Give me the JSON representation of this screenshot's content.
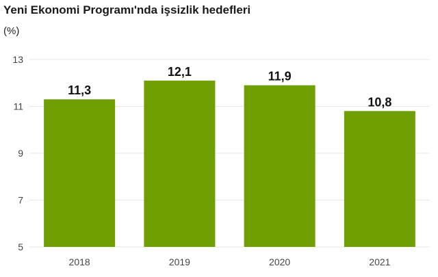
{
  "chart_data": {
    "type": "bar",
    "title": "Yeni Ekonomi Programı'nda işsizlik hedefleri",
    "unit_label": "(%)",
    "categories": [
      "2018",
      "2019",
      "2020",
      "2021"
    ],
    "values": [
      11.3,
      12.1,
      11.9,
      10.8
    ],
    "value_labels": [
      "11,3",
      "12,1",
      "11,9",
      "10,8"
    ],
    "ylim": [
      5,
      13
    ],
    "yticks": [
      5,
      7,
      9,
      11,
      13
    ],
    "xlabel": "",
    "ylabel": "",
    "grid": true,
    "legend": "none",
    "colors": {
      "bar": "#6f9f00",
      "grid": "#e6e6e6",
      "axis_text": "#444444",
      "value_text": "#111111"
    }
  }
}
